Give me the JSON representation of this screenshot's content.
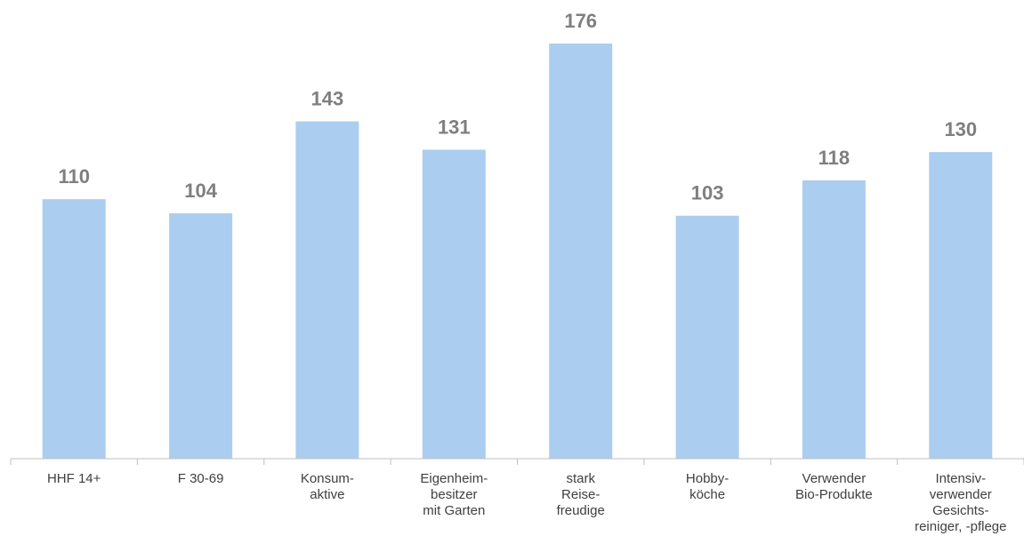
{
  "chart_data": {
    "type": "bar",
    "categories": [
      [
        "HHF 14+"
      ],
      [
        "F 30-69"
      ],
      [
        "Konsum-",
        "aktive"
      ],
      [
        "Eigenheim-",
        "besitzer",
        "mit Garten"
      ],
      [
        "stark",
        "Reise-",
        "freudige"
      ],
      [
        "Hobby-",
        "köche"
      ],
      [
        "Verwender",
        "Bio-Produkte"
      ],
      [
        "Intensiv-",
        "verwender",
        "Gesichts-",
        "reiniger, -pflege"
      ]
    ],
    "values": [
      110,
      104,
      143,
      131,
      176,
      103,
      118,
      130
    ],
    "ylim": [
      0,
      176
    ],
    "bar_color": "#abcdf0",
    "label_color": "#7f7f7f",
    "axis_color": "#bfbfbf",
    "grid": false,
    "legend": "none"
  }
}
